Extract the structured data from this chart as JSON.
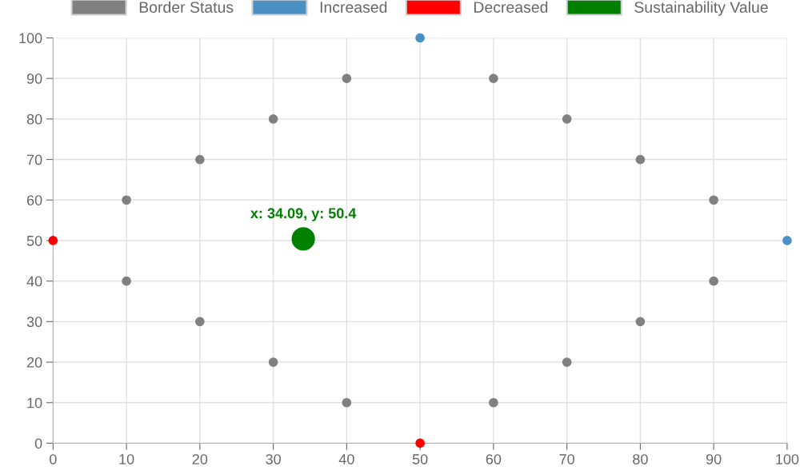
{
  "chart_data": {
    "type": "scatter",
    "series": [
      {
        "name": "Border Status",
        "color": "#808080",
        "x": [
          10,
          20,
          30,
          40,
          60,
          70,
          80,
          90,
          90,
          80,
          70,
          60,
          40,
          30,
          20,
          10
        ],
        "values": [
          60,
          70,
          80,
          90,
          90,
          80,
          70,
          60,
          40,
          30,
          20,
          10,
          10,
          20,
          30,
          40
        ]
      },
      {
        "name": "Increased",
        "color": "#4a90c4",
        "x": [
          50,
          100
        ],
        "values": [
          100,
          50
        ]
      },
      {
        "name": "Decreased",
        "color": "#ff0000",
        "x": [
          0,
          50
        ],
        "values": [
          50,
          0
        ]
      },
      {
        "name": "Sustainability Value",
        "type": "bubble",
        "color": "#008000",
        "x": [
          34.09
        ],
        "values": [
          50.4
        ],
        "sizes": [
          1
        ]
      }
    ],
    "annotations": [
      {
        "text": "x: 34.09, y: 50.4",
        "x": 34.09,
        "y": 50.4
      }
    ],
    "xlim": [
      0,
      100
    ],
    "xticks": [
      0,
      10,
      20,
      30,
      40,
      50,
      60,
      70,
      80,
      90,
      100
    ],
    "ylim": [
      0,
      100
    ],
    "yticks": [
      0,
      10,
      20,
      30,
      40,
      50,
      60,
      70,
      80,
      90,
      100
    ],
    "grid": true,
    "legend": "top",
    "marker": "circle"
  }
}
